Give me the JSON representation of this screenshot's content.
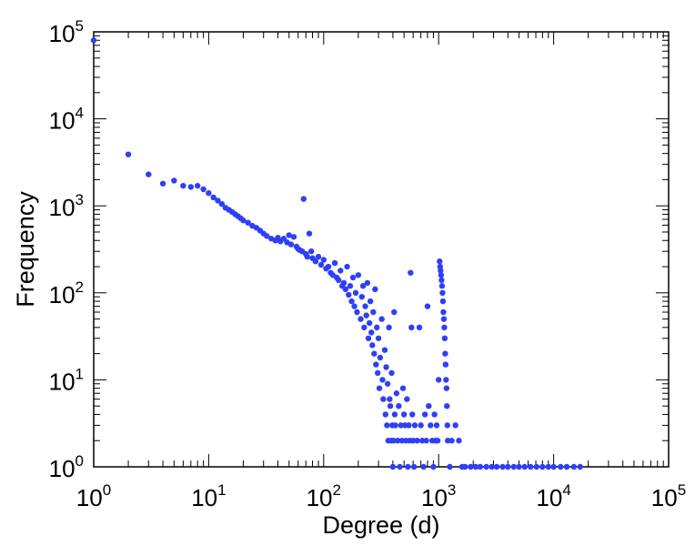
{
  "chart_data": {
    "type": "scatter",
    "title": "",
    "xlabel": "Degree (d)",
    "ylabel": "Frequency",
    "xscale": "log",
    "yscale": "log",
    "xlim": [
      1,
      100000
    ],
    "ylim": [
      1,
      100000
    ],
    "grid": false,
    "legend": "none",
    "colors": {
      "points": "#2f3ff5",
      "axes": "#000000"
    },
    "x_ticks": [
      {
        "base": "10",
        "exp": "0"
      },
      {
        "base": "10",
        "exp": "1"
      },
      {
        "base": "10",
        "exp": "2"
      },
      {
        "base": "10",
        "exp": "3"
      },
      {
        "base": "10",
        "exp": "4"
      },
      {
        "base": "10",
        "exp": "5"
      }
    ],
    "y_ticks": [
      {
        "base": "10",
        "exp": "0"
      },
      {
        "base": "10",
        "exp": "1"
      },
      {
        "base": "10",
        "exp": "2"
      },
      {
        "base": "10",
        "exp": "3"
      },
      {
        "base": "10",
        "exp": "4"
      },
      {
        "base": "10",
        "exp": "5"
      }
    ],
    "series": [
      {
        "points": [
          [
            1,
            80000
          ],
          [
            2,
            3900
          ],
          [
            3,
            2300
          ],
          [
            4,
            1800
          ],
          [
            5,
            1950
          ],
          [
            6,
            1700
          ],
          [
            7,
            1650
          ],
          [
            8,
            1700
          ],
          [
            9,
            1550
          ],
          [
            10,
            1400
          ],
          [
            11,
            1250
          ],
          [
            12,
            1150
          ],
          [
            13,
            1050
          ],
          [
            14,
            950
          ],
          [
            15,
            900
          ],
          [
            16,
            850
          ],
          [
            17,
            800
          ],
          [
            18,
            760
          ],
          [
            19,
            720
          ],
          [
            20,
            680
          ],
          [
            22,
            640
          ],
          [
            24,
            590
          ],
          [
            26,
            560
          ],
          [
            28,
            520
          ],
          [
            30,
            480
          ],
          [
            32,
            450
          ],
          [
            35,
            420
          ],
          [
            38,
            400
          ],
          [
            40,
            430
          ],
          [
            42,
            390
          ],
          [
            45,
            420
          ],
          [
            48,
            380
          ],
          [
            50,
            460
          ],
          [
            52,
            360
          ],
          [
            55,
            440
          ],
          [
            58,
            340
          ],
          [
            60,
            320
          ],
          [
            62,
            310
          ],
          [
            65,
            300
          ],
          [
            67,
            1200
          ],
          [
            70,
            280
          ],
          [
            72,
            260
          ],
          [
            75,
            480
          ],
          [
            78,
            300
          ],
          [
            80,
            250
          ],
          [
            85,
            230
          ],
          [
            90,
            260
          ],
          [
            95,
            210
          ],
          [
            100,
            240
          ],
          [
            105,
            190
          ],
          [
            110,
            200
          ],
          [
            115,
            170
          ],
          [
            120,
            160
          ],
          [
            125,
            220
          ],
          [
            130,
            150
          ],
          [
            135,
            140
          ],
          [
            140,
            180
          ],
          [
            145,
            120
          ],
          [
            150,
            130
          ],
          [
            155,
            110
          ],
          [
            160,
            200
          ],
          [
            165,
            95
          ],
          [
            170,
            120
          ],
          [
            175,
            80
          ],
          [
            180,
            150
          ],
          [
            185,
            70
          ],
          [
            190,
            100
          ],
          [
            195,
            60
          ],
          [
            200,
            160
          ],
          [
            210,
            50
          ],
          [
            215,
            90
          ],
          [
            220,
            120
          ],
          [
            225,
            40
          ],
          [
            230,
            70
          ],
          [
            235,
            55
          ],
          [
            240,
            130
          ],
          [
            245,
            30
          ],
          [
            250,
            45
          ],
          [
            255,
            80
          ],
          [
            260,
            35
          ],
          [
            265,
            25
          ],
          [
            270,
            60
          ],
          [
            275,
            20
          ],
          [
            280,
            110
          ],
          [
            285,
            15
          ],
          [
            290,
            40
          ],
          [
            295,
            12
          ],
          [
            300,
            30
          ],
          [
            305,
            8
          ],
          [
            310,
            18
          ],
          [
            320,
            50
          ],
          [
            325,
            10
          ],
          [
            330,
            6
          ],
          [
            340,
            22
          ],
          [
            345,
            4
          ],
          [
            350,
            14
          ],
          [
            355,
            3
          ],
          [
            360,
            9
          ],
          [
            365,
            2
          ],
          [
            370,
            40
          ],
          [
            375,
            6
          ],
          [
            380,
            5
          ],
          [
            385,
            2
          ],
          [
            390,
            12
          ],
          [
            395,
            3
          ],
          [
            400,
            1
          ],
          [
            405,
            2
          ],
          [
            410,
            60
          ],
          [
            415,
            4
          ],
          [
            420,
            3
          ],
          [
            430,
            7
          ],
          [
            440,
            2
          ],
          [
            450,
            5
          ],
          [
            460,
            1
          ],
          [
            470,
            3
          ],
          [
            480,
            2
          ],
          [
            490,
            8
          ],
          [
            500,
            4
          ],
          [
            510,
            3
          ],
          [
            520,
            2
          ],
          [
            530,
            6
          ],
          [
            540,
            1
          ],
          [
            550,
            3
          ],
          [
            560,
            2
          ],
          [
            570,
            170
          ],
          [
            580,
            40
          ],
          [
            590,
            4
          ],
          [
            600,
            2
          ],
          [
            610,
            1
          ],
          [
            620,
            3
          ],
          [
            650,
            2
          ],
          [
            680,
            40
          ],
          [
            700,
            3
          ],
          [
            720,
            2
          ],
          [
            740,
            1
          ],
          [
            760,
            4
          ],
          [
            780,
            2
          ],
          [
            800,
            70
          ],
          [
            820,
            5
          ],
          [
            850,
            3
          ],
          [
            880,
            2
          ],
          [
            900,
            1
          ],
          [
            920,
            4
          ],
          [
            940,
            2
          ],
          [
            960,
            3
          ],
          [
            980,
            2
          ],
          [
            1000,
            10
          ],
          [
            1020,
            230
          ],
          [
            1030,
            200
          ],
          [
            1040,
            180
          ],
          [
            1050,
            160
          ],
          [
            1060,
            140
          ],
          [
            1070,
            120
          ],
          [
            1080,
            100
          ],
          [
            1090,
            80
          ],
          [
            1100,
            60
          ],
          [
            1110,
            50
          ],
          [
            1120,
            40
          ],
          [
            1130,
            30
          ],
          [
            1140,
            20
          ],
          [
            1150,
            15
          ],
          [
            1160,
            10
          ],
          [
            1170,
            8
          ],
          [
            1180,
            5
          ],
          [
            1190,
            3
          ],
          [
            1200,
            2
          ],
          [
            1250,
            1
          ],
          [
            1300,
            2
          ],
          [
            1400,
            3
          ],
          [
            1500,
            2
          ],
          [
            1600,
            1
          ],
          [
            1700,
            1
          ],
          [
            1900,
            1
          ],
          [
            2100,
            1
          ],
          [
            2300,
            1
          ],
          [
            2600,
            1
          ],
          [
            2900,
            1
          ],
          [
            3200,
            1
          ],
          [
            3600,
            1
          ],
          [
            4000,
            1
          ],
          [
            4500,
            1
          ],
          [
            5000,
            1
          ],
          [
            5600,
            1
          ],
          [
            6300,
            1
          ],
          [
            7100,
            1
          ],
          [
            8000,
            1
          ],
          [
            9000,
            1
          ],
          [
            10000,
            1
          ],
          [
            11500,
            1
          ],
          [
            13000,
            1
          ],
          [
            15000,
            1
          ],
          [
            17000,
            1
          ]
        ]
      }
    ]
  }
}
